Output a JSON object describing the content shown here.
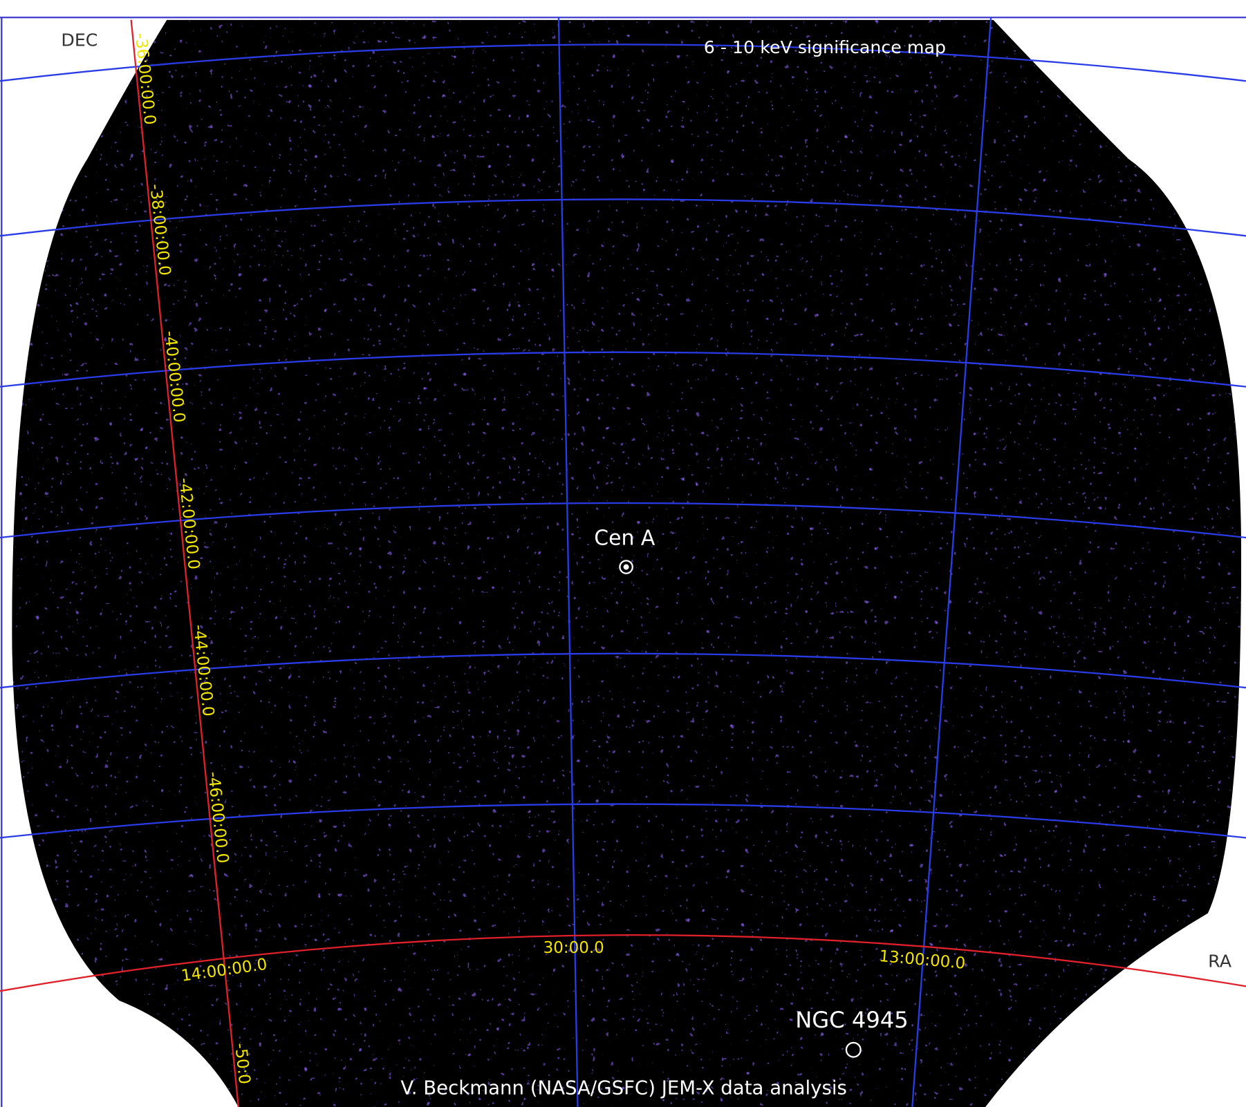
{
  "header": {
    "title": "6 - 10 keV significance map"
  },
  "axes": {
    "dec_label": "DEC",
    "ra_label": "RA",
    "dec_ticks": [
      "-36:00:00.0",
      "-38:00:00.0",
      "-40:00:00.0",
      "-42:00:00.0",
      "-44:00:00.0",
      "-46:00:00.0",
      "-50:0"
    ],
    "ra_ticks": [
      "14:00:00.0",
      "30:00.0",
      "13:00:00.0"
    ]
  },
  "sources": [
    {
      "label": "Cen A"
    },
    {
      "label": "NGC 4945"
    }
  ],
  "credit": "V. Beckmann (NASA/GSFC) JEM-X data analysis"
}
